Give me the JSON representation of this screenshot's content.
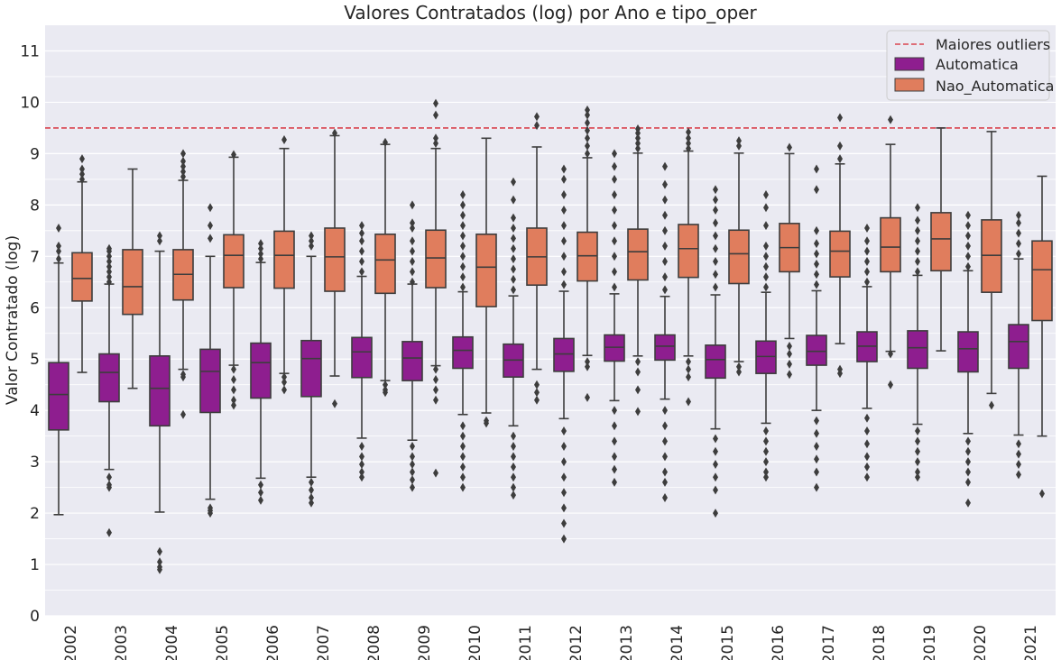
{
  "chart_data": {
    "type": "box",
    "title": "Valores Contratados (log) por Ano e tipo_oper",
    "xlabel": "",
    "ylabel": "Valor Contratado (log)",
    "ylim": [
      0,
      11.5
    ],
    "yticks": [
      "0",
      "1",
      "2",
      "3",
      "4",
      "5",
      "6",
      "7",
      "8",
      "9",
      "10",
      "11"
    ],
    "grid": true,
    "legend_position": "top-right",
    "reference_line": {
      "label": "Maiores outliers",
      "y": 9.5,
      "color": "#d9444f"
    },
    "categories": [
      "2002",
      "2003",
      "2004",
      "2005",
      "2006",
      "2007",
      "2008",
      "2009",
      "2010",
      "2011",
      "2012",
      "2013",
      "2014",
      "2015",
      "2016",
      "2017",
      "2018",
      "2019",
      "2020",
      "2021"
    ],
    "series": [
      {
        "name": "Automatica",
        "color": "#8e1e8f",
        "boxes": [
          {
            "whislo": 1.97,
            "q1": 3.62,
            "med": 4.31,
            "q3": 4.93,
            "whishi": 6.87,
            "fliers": [
              6.95,
              7.1,
              7.2,
              7.55
            ]
          },
          {
            "whislo": 2.85,
            "q1": 4.17,
            "med": 4.74,
            "q3": 5.1,
            "whishi": 6.46,
            "fliers": [
              2.5,
              2.55,
              2.7,
              1.62,
              6.5,
              6.6,
              6.7,
              6.8,
              6.9,
              7.0,
              7.1,
              7.15
            ]
          },
          {
            "whislo": 2.02,
            "q1": 3.7,
            "med": 4.43,
            "q3": 5.06,
            "whishi": 7.1,
            "fliers": [
              1.25,
              1.05,
              0.95,
              0.9,
              7.3,
              7.4
            ]
          },
          {
            "whislo": 2.27,
            "q1": 3.96,
            "med": 4.76,
            "q3": 5.19,
            "whishi": 7.0,
            "fliers": [
              2.1,
              2.05,
              2.0,
              7.35,
              7.6,
              7.95
            ]
          },
          {
            "whislo": 2.68,
            "q1": 4.24,
            "med": 4.93,
            "q3": 5.31,
            "whishi": 6.88,
            "fliers": [
              2.55,
              2.4,
              2.25,
              6.95,
              7.05,
              7.15,
              7.25
            ]
          },
          {
            "whislo": 2.7,
            "q1": 4.27,
            "med": 5.01,
            "q3": 5.36,
            "whishi": 7.0,
            "fliers": [
              2.6,
              2.45,
              2.3,
              2.2,
              7.2,
              7.3,
              7.4
            ]
          },
          {
            "whislo": 3.46,
            "q1": 4.64,
            "med": 5.14,
            "q3": 5.42,
            "whishi": 6.61,
            "fliers": [
              3.3,
              3.1,
              2.95,
              2.8,
              2.7,
              6.7,
              6.9,
              7.1,
              7.3,
              7.45,
              7.6
            ]
          },
          {
            "whislo": 3.42,
            "q1": 4.58,
            "med": 5.02,
            "q3": 5.34,
            "whishi": 6.46,
            "fliers": [
              3.3,
              3.1,
              2.95,
              2.8,
              2.65,
              2.5,
              6.5,
              6.7,
              6.9,
              7.1,
              7.3,
              7.55,
              7.65,
              8.0
            ]
          },
          {
            "whislo": 3.92,
            "q1": 4.82,
            "med": 5.17,
            "q3": 5.43,
            "whishi": 6.31,
            "fliers": [
              3.7,
              3.5,
              3.3,
              3.1,
              2.9,
              2.7,
              2.5,
              6.4,
              6.6,
              6.8,
              7.0,
              7.2,
              7.4,
              7.6,
              7.8,
              8.0,
              8.2
            ]
          },
          {
            "whislo": 3.7,
            "q1": 4.65,
            "med": 4.98,
            "q3": 5.29,
            "whishi": 6.23,
            "fliers": [
              3.5,
              3.3,
              3.1,
              2.9,
              2.7,
              2.5,
              2.35,
              6.35,
              6.55,
              6.75,
              6.95,
              7.15,
              7.35,
              7.55,
              7.75,
              8.1,
              8.45
            ]
          },
          {
            "whislo": 3.84,
            "q1": 4.76,
            "med": 5.1,
            "q3": 5.4,
            "whishi": 6.32,
            "fliers": [
              3.6,
              3.3,
              3.0,
              2.7,
              2.4,
              2.1,
              1.8,
              1.5,
              6.45,
              6.7,
              7.0,
              7.3,
              7.6,
              7.9,
              8.2,
              8.5,
              8.7
            ]
          },
          {
            "whislo": 4.19,
            "q1": 4.96,
            "med": 5.23,
            "q3": 5.47,
            "whishi": 6.27,
            "fliers": [
              4.0,
              3.7,
              3.4,
              3.1,
              2.85,
              2.6,
              6.4,
              6.7,
              7.0,
              7.3,
              7.6,
              7.9,
              8.2,
              8.5,
              8.75,
              9.0
            ]
          },
          {
            "whislo": 4.22,
            "q1": 4.98,
            "med": 5.25,
            "q3": 5.47,
            "whishi": 6.22,
            "fliers": [
              4.0,
              3.7,
              3.4,
              3.1,
              2.8,
              2.6,
              2.3,
              6.35,
              6.6,
              6.9,
              7.2,
              7.5,
              7.8,
              8.1,
              8.4,
              8.75
            ]
          },
          {
            "whislo": 3.64,
            "q1": 4.63,
            "med": 4.99,
            "q3": 5.27,
            "whishi": 6.25,
            "fliers": [
              3.45,
              3.2,
              2.95,
              2.7,
              2.45,
              2.0,
              6.4,
              6.65,
              6.9,
              7.15,
              7.4,
              7.65,
              7.9,
              8.1,
              8.3
            ]
          },
          {
            "whislo": 3.75,
            "q1": 4.72,
            "med": 5.05,
            "q3": 5.35,
            "whishi": 6.3,
            "fliers": [
              3.6,
              3.4,
              3.2,
              3.0,
              2.8,
              2.7,
              6.4,
              6.6,
              6.8,
              7.0,
              7.2,
              7.6,
              7.95,
              8.2
            ]
          },
          {
            "whislo": 4.0,
            "q1": 4.88,
            "med": 5.15,
            "q3": 5.46,
            "whishi": 6.33,
            "fliers": [
              3.8,
              3.55,
              3.3,
              3.05,
              2.8,
              2.5,
              6.45,
              6.65,
              6.85,
              7.05,
              7.25,
              7.5,
              8.3,
              8.7
            ]
          },
          {
            "whislo": 4.04,
            "q1": 4.95,
            "med": 5.25,
            "q3": 5.53,
            "whishi": 6.41,
            "fliers": [
              3.85,
              3.6,
              3.35,
              3.1,
              2.9,
              2.7,
              6.5,
              6.7,
              6.9,
              7.1,
              7.3,
              7.55
            ]
          },
          {
            "whislo": 3.73,
            "q1": 4.82,
            "med": 5.22,
            "q3": 5.55,
            "whishi": 6.63,
            "fliers": [
              3.6,
              3.4,
              3.2,
              3.0,
              2.8,
              2.7,
              6.7,
              6.9,
              7.1,
              7.3,
              7.5,
              7.7,
              7.95
            ]
          },
          {
            "whislo": 3.55,
            "q1": 4.75,
            "med": 5.2,
            "q3": 5.53,
            "whishi": 6.72,
            "fliers": [
              3.4,
              3.2,
              3.0,
              2.8,
              2.6,
              2.2,
              6.8,
              7.0,
              7.2,
              7.4,
              7.6,
              7.8
            ]
          },
          {
            "whislo": 3.52,
            "q1": 4.82,
            "med": 5.34,
            "q3": 5.67,
            "whishi": 6.95,
            "fliers": [
              3.35,
              3.15,
              2.95,
              2.75,
              7.05,
              7.25,
              7.45,
              7.65,
              7.8
            ]
          }
        ]
      },
      {
        "name": "Nao_Automatica",
        "color": "#e07d5d",
        "boxes": [
          {
            "whislo": 4.74,
            "q1": 6.13,
            "med": 6.57,
            "q3": 7.07,
            "whishi": 8.45,
            "fliers": [
              8.5,
              8.6,
              8.7,
              8.9
            ]
          },
          {
            "whislo": 4.43,
            "q1": 5.87,
            "med": 6.41,
            "q3": 7.13,
            "whishi": 8.7,
            "fliers": []
          },
          {
            "whislo": 4.8,
            "q1": 6.15,
            "med": 6.65,
            "q3": 7.13,
            "whishi": 8.48,
            "fliers": [
              4.7,
              4.65,
              3.92,
              8.55,
              8.65,
              8.75,
              8.85,
              9.0
            ]
          },
          {
            "whislo": 4.88,
            "q1": 6.39,
            "med": 7.02,
            "q3": 7.42,
            "whishi": 8.93,
            "fliers": [
              4.8,
              4.6,
              4.4,
              4.2,
              4.1,
              8.98
            ]
          },
          {
            "whislo": 4.72,
            "q1": 6.38,
            "med": 7.02,
            "q3": 7.49,
            "whishi": 9.1,
            "fliers": [
              4.65,
              4.55,
              4.4,
              9.27
            ]
          },
          {
            "whislo": 4.67,
            "q1": 6.32,
            "med": 6.99,
            "q3": 7.55,
            "whishi": 9.35,
            "fliers": [
              4.13,
              9.4
            ]
          },
          {
            "whislo": 4.58,
            "q1": 6.28,
            "med": 6.93,
            "q3": 7.43,
            "whishi": 9.18,
            "fliers": [
              4.5,
              4.4,
              4.35,
              9.22
            ]
          },
          {
            "whislo": 4.87,
            "q1": 6.39,
            "med": 6.97,
            "q3": 7.51,
            "whishi": 9.1,
            "fliers": [
              4.8,
              4.6,
              4.4,
              4.2,
              2.78,
              9.2,
              9.3,
              9.75,
              9.98
            ]
          },
          {
            "whislo": 3.95,
            "q1": 6.02,
            "med": 6.79,
            "q3": 7.43,
            "whishi": 9.3,
            "fliers": [
              3.8,
              3.75
            ]
          },
          {
            "whislo": 4.8,
            "q1": 6.44,
            "med": 6.99,
            "q3": 7.55,
            "whishi": 9.13,
            "fliers": [
              4.5,
              4.35,
              4.2,
              9.55,
              9.72
            ]
          },
          {
            "whislo": 5.07,
            "q1": 6.52,
            "med": 7.01,
            "q3": 7.47,
            "whishi": 8.92,
            "fliers": [
              4.95,
              4.85,
              4.25,
              9.0,
              9.15,
              9.3,
              9.45,
              9.6,
              9.75,
              9.85
            ]
          },
          {
            "whislo": 5.06,
            "q1": 6.54,
            "med": 7.09,
            "q3": 7.53,
            "whishi": 9.01,
            "fliers": [
              4.95,
              4.75,
              4.4,
              3.98,
              9.1,
              9.2,
              9.3,
              9.4,
              9.48
            ]
          },
          {
            "whislo": 5.06,
            "q1": 6.59,
            "med": 7.15,
            "q3": 7.62,
            "whishi": 9.05,
            "fliers": [
              4.95,
              4.8,
              4.65,
              4.17,
              9.1,
              9.2,
              9.3,
              9.42
            ]
          },
          {
            "whislo": 4.95,
            "q1": 6.47,
            "med": 7.05,
            "q3": 7.51,
            "whishi": 9.01,
            "fliers": [
              4.85,
              4.75,
              9.15,
              9.25
            ]
          },
          {
            "whislo": 5.4,
            "q1": 6.7,
            "med": 7.17,
            "q3": 7.64,
            "whishi": 9.0,
            "fliers": [
              5.25,
              5.1,
              4.9,
              4.7,
              9.12
            ]
          },
          {
            "whislo": 5.3,
            "q1": 6.6,
            "med": 7.1,
            "q3": 7.49,
            "whishi": 8.8,
            "fliers": [
              4.8,
              4.72,
              8.9,
              9.15,
              9.7
            ]
          },
          {
            "whislo": 5.15,
            "q1": 6.7,
            "med": 7.18,
            "q3": 7.75,
            "whishi": 9.18,
            "fliers": [
              5.1,
              4.5,
              9.66
            ]
          },
          {
            "whislo": 5.16,
            "q1": 6.72,
            "med": 7.34,
            "q3": 7.85,
            "whishi": 9.5,
            "fliers": []
          },
          {
            "whislo": 4.33,
            "q1": 6.3,
            "med": 7.02,
            "q3": 7.71,
            "whishi": 9.43,
            "fliers": [
              4.1
            ]
          },
          {
            "whislo": 3.5,
            "q1": 5.75,
            "med": 6.74,
            "q3": 7.3,
            "whishi": 8.56,
            "fliers": [
              2.38
            ]
          }
        ]
      }
    ]
  }
}
